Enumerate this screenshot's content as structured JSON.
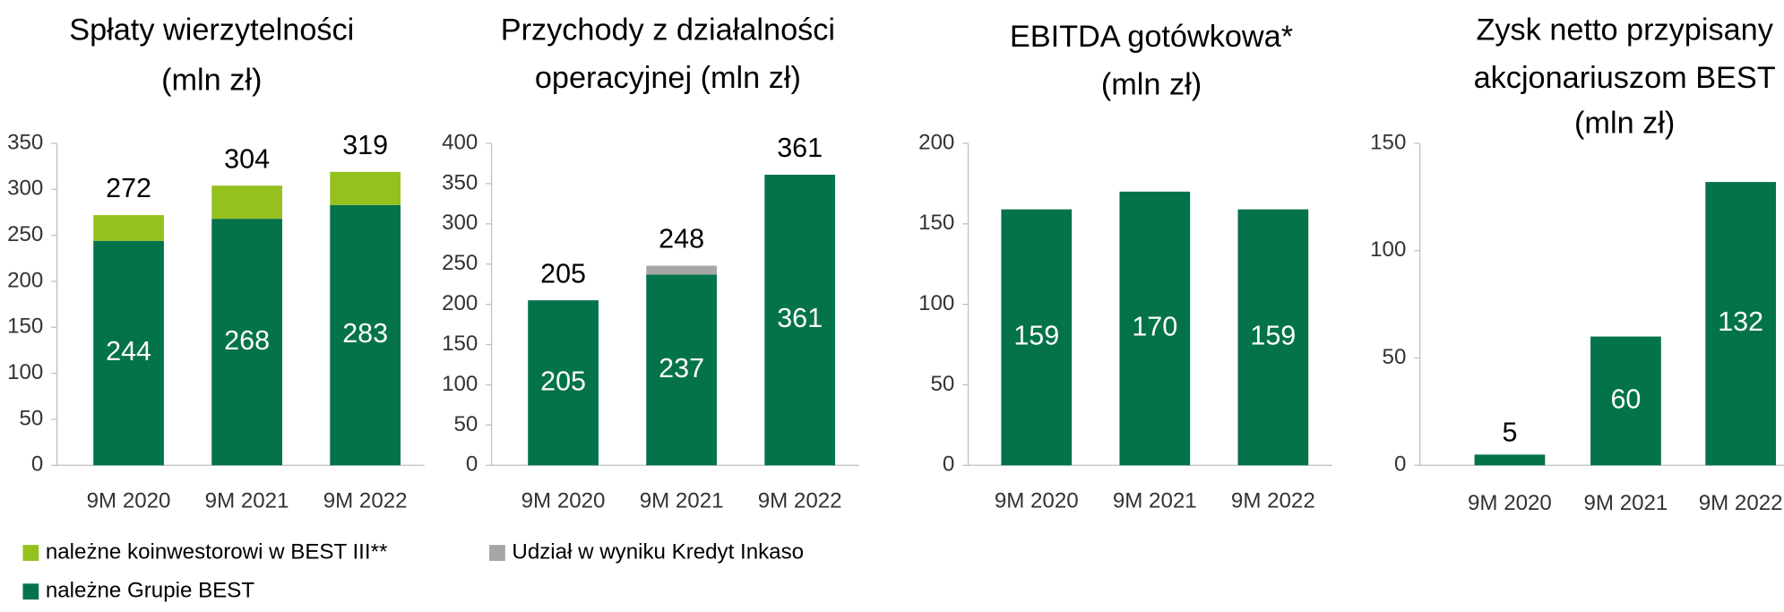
{
  "chart_data": [
    {
      "type": "bar",
      "title": [
        "Spłaty wierzytelności",
        "(mln zł)"
      ],
      "categories": [
        "9M 2020",
        "9M 2021",
        "9M 2022"
      ],
      "series": [
        {
          "name": "należne Grupie BEST",
          "color": "#04734a",
          "values": [
            244,
            268,
            283
          ]
        },
        {
          "name": "należne koinwestorowi w BEST III**",
          "color": "#95c11f",
          "values": [
            28,
            36,
            36
          ]
        }
      ],
      "totals": [
        272,
        304,
        319
      ],
      "ylim": [
        0,
        350
      ],
      "yticks": [
        0,
        50,
        100,
        150,
        200,
        250,
        300,
        350
      ]
    },
    {
      "type": "bar",
      "title": [
        "Przychody z działalności",
        "operacyjnej (mln zł)"
      ],
      "categories": [
        "9M 2020",
        "9M 2021",
        "9M 2022"
      ],
      "series": [
        {
          "color": "#04734a",
          "values": [
            205,
            237,
            361
          ]
        },
        {
          "name": "Udział w wyniku Kredyt Inkaso",
          "color": "#a6a6a6",
          "values": [
            null,
            11,
            null
          ]
        }
      ],
      "totals": [
        205,
        248,
        361
      ],
      "ylim": [
        0,
        400
      ],
      "yticks": [
        0,
        50,
        100,
        150,
        200,
        250,
        300,
        350,
        400
      ]
    },
    {
      "type": "bar",
      "title": [
        "EBITDA gotówkowa*",
        "(mln zł)"
      ],
      "categories": [
        "9M 2020",
        "9M 2021",
        "9M 2022"
      ],
      "series": [
        {
          "color": "#04734a",
          "values": [
            159,
            170,
            159
          ]
        }
      ],
      "ylim": [
        0,
        200
      ],
      "yticks": [
        0,
        50,
        100,
        150,
        200
      ]
    },
    {
      "type": "bar",
      "title": [
        "Zysk netto przypisany",
        "akcjonariuszom BEST",
        "(mln zł)"
      ],
      "categories": [
        "9M 2020",
        "9M 2021",
        "9M 2022"
      ],
      "series": [
        {
          "color": "#04734a",
          "values": [
            5,
            60,
            132
          ]
        }
      ],
      "ylim": [
        0,
        150
      ],
      "yticks": [
        0,
        50,
        100,
        150
      ]
    }
  ]
}
